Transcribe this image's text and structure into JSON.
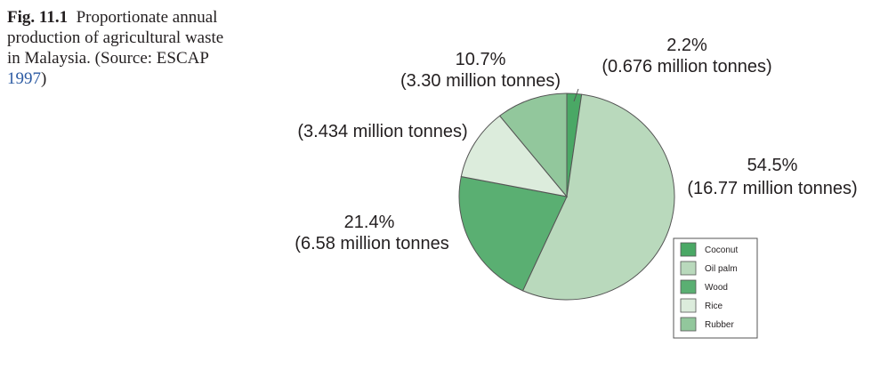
{
  "caption": {
    "fig_label": "Fig. 11.1",
    "text_before_ref": "Proportionate annual production of agricultural waste in Malaysia. (Source: ESCAP ",
    "ref": "1997",
    "text_after_ref": ")"
  },
  "colors": {
    "Coconut": "#4aa865",
    "Oil palm": "#b9d9bc",
    "Wood": "#5aaf72",
    "Rice": "#dcecdc",
    "Rubber": "#92c79c",
    "outline": "#555555"
  },
  "chart_data": {
    "type": "pie",
    "title": "",
    "categories": [
      "Coconut",
      "Oil palm",
      "Wood",
      "Rice",
      "Rubber"
    ],
    "values": [
      2.2,
      54.5,
      21.4,
      11.2,
      10.7
    ],
    "legend_placement": "bottom-right",
    "labels": [
      {
        "name": "coconut",
        "percent": "2.2%",
        "amount": "(0.676 million tonnes)"
      },
      {
        "name": "oil-palm",
        "percent": "54.5%",
        "amount": "(16.77 million tonnes)"
      },
      {
        "name": "wood",
        "percent": "21.4%",
        "amount": "(6.58 million tonnes"
      },
      {
        "name": "rice",
        "percent": "",
        "amount": "(3.434 million tonnes)"
      },
      {
        "name": "rubber",
        "percent": "10.7%",
        "amount": "(3.30 million  tonnes)"
      }
    ]
  }
}
